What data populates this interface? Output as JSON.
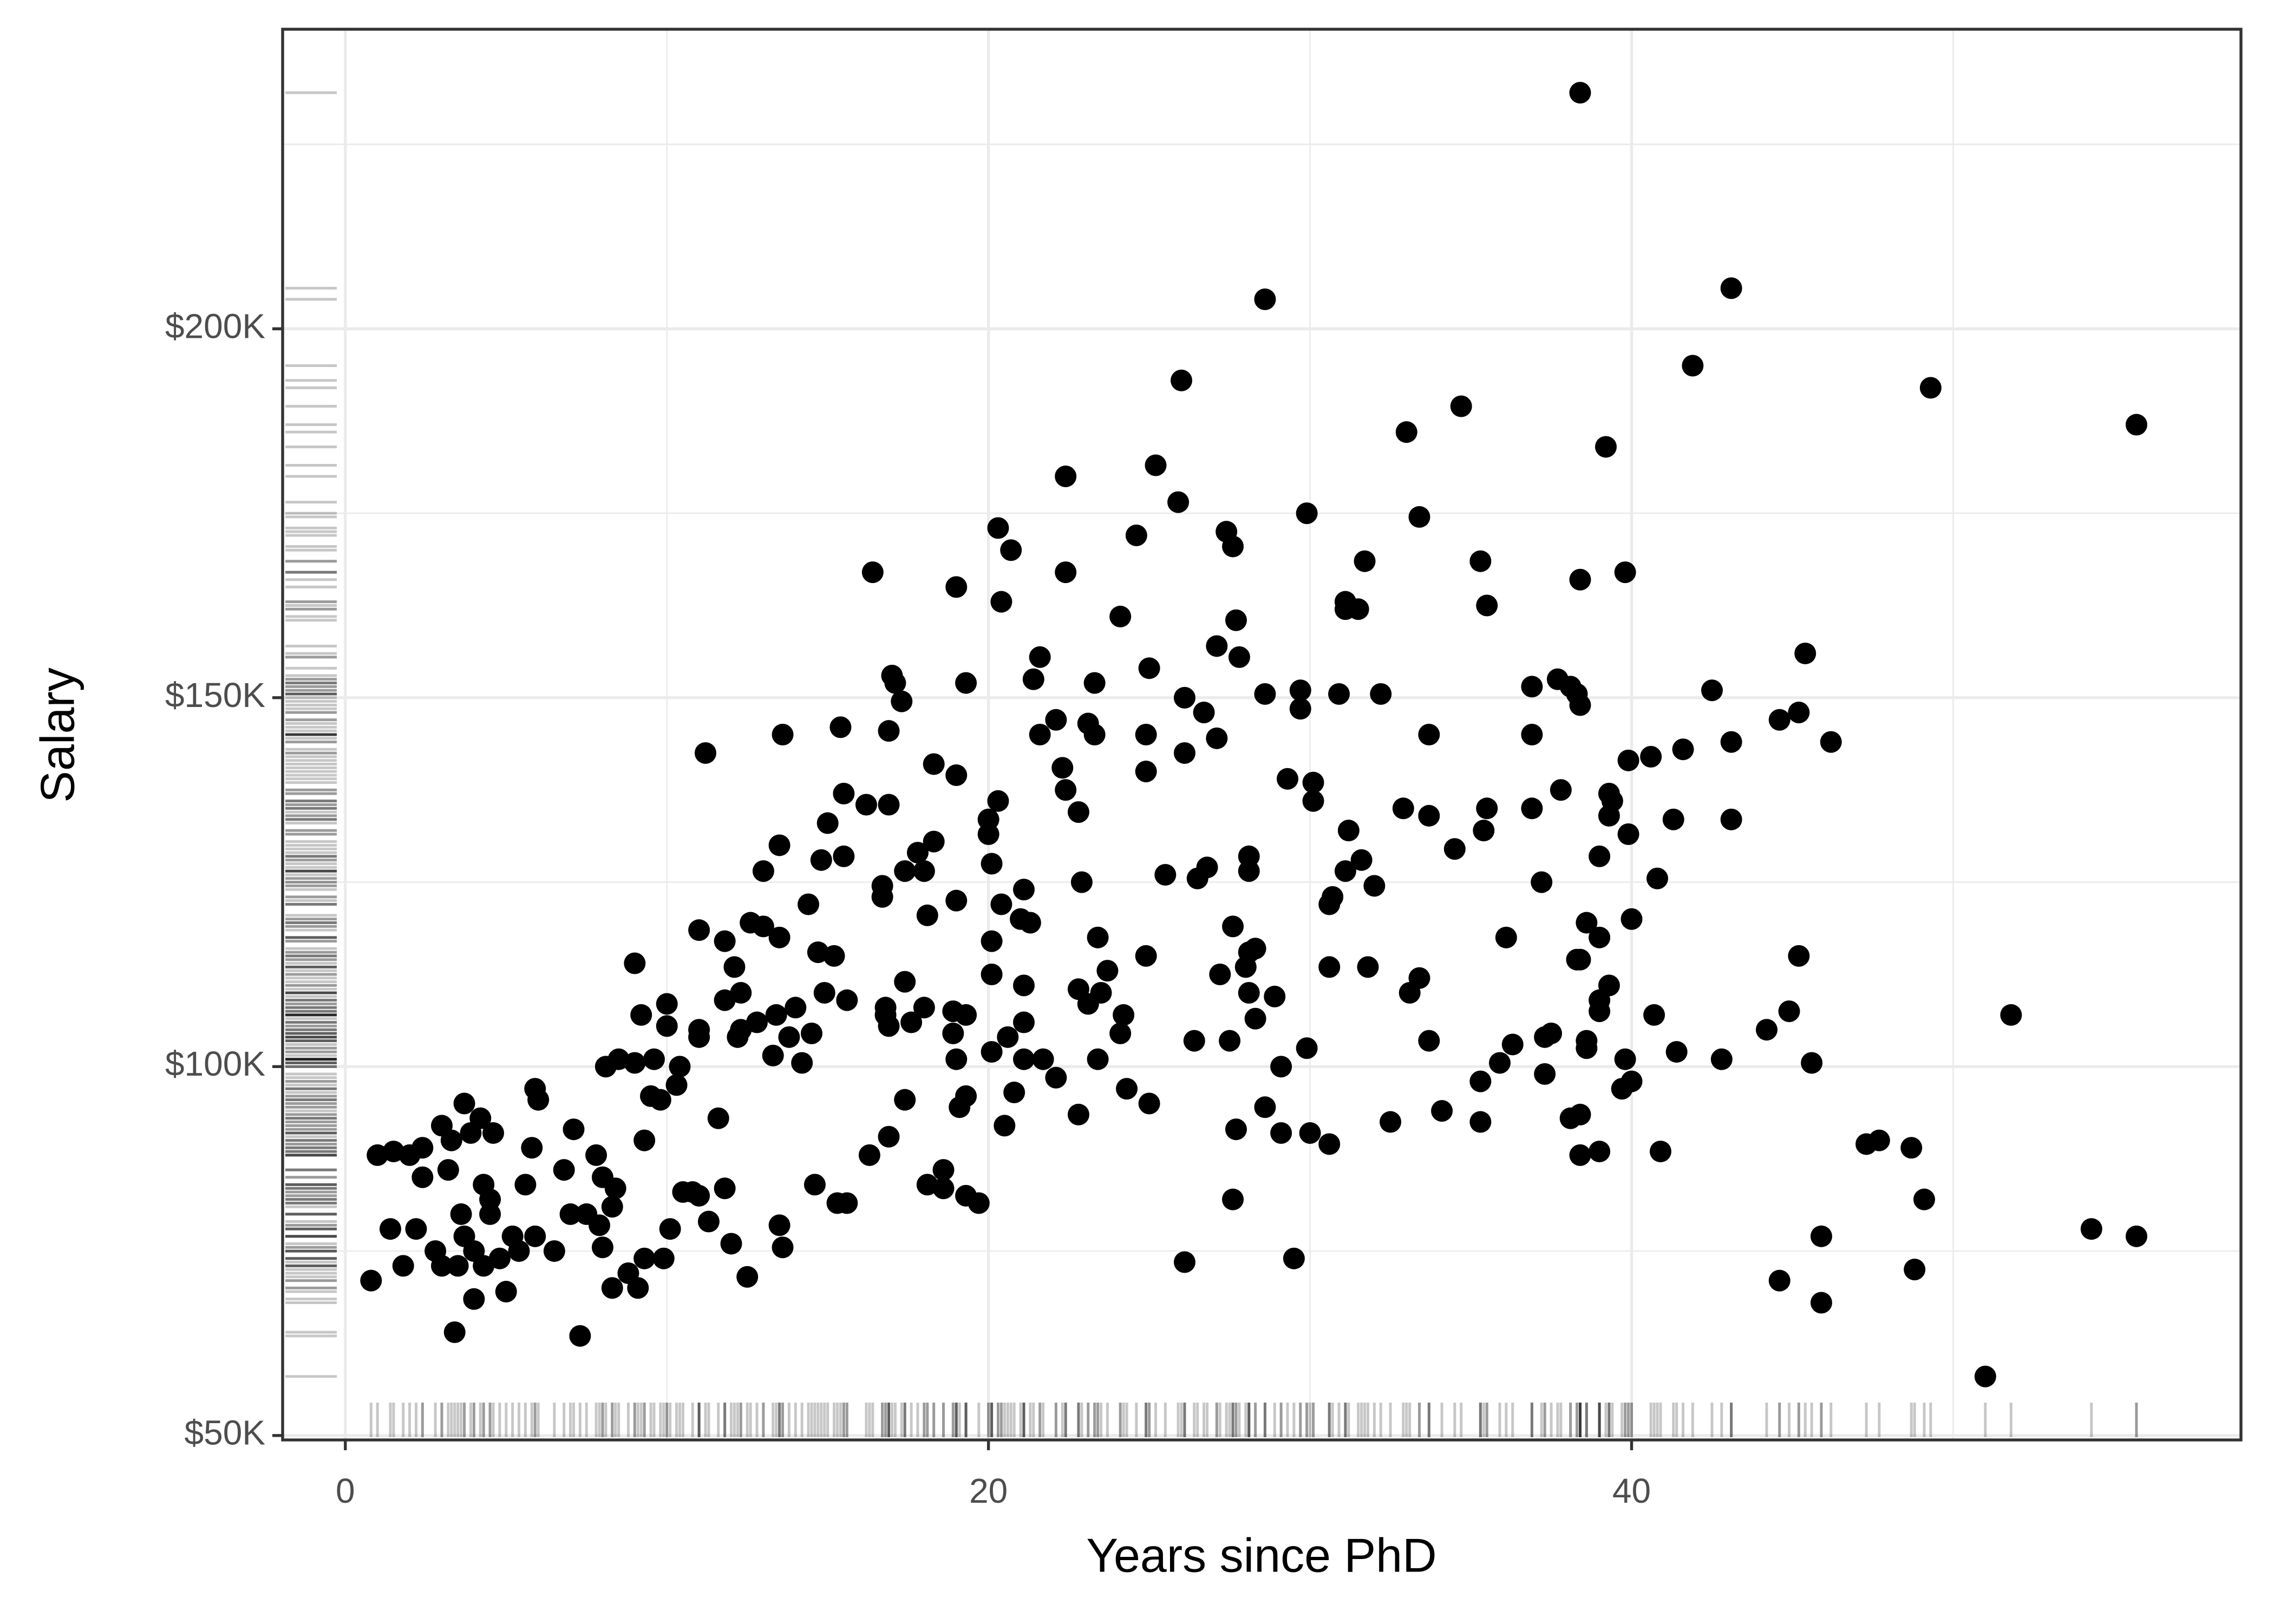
{
  "chart_data": {
    "type": "scatter",
    "x_label": "Years since PhD",
    "y_label": "Salary",
    "color": "#000000",
    "rug": true,
    "grid": true,
    "xlim": [
      -1.95,
      58.95
    ],
    "xticks": [
      0,
      20,
      40
    ],
    "ylim": [
      49400,
      240600
    ],
    "yticks": [
      {
        "value": 50000,
        "label": "$50K"
      },
      {
        "value": 100000,
        "label": "$100K"
      },
      {
        "value": 150000,
        "label": "$150K"
      },
      {
        "value": 200000,
        "label": "$200K"
      }
    ],
    "x": [
      0.8,
      1,
      1.5,
      1.4,
      2,
      1.8,
      2.2,
      2.4,
      2.4,
      2.8,
      3,
      3,
      3.2,
      3.3,
      3.4,
      3.5,
      3.6,
      3.7,
      3.7,
      3.9,
      4,
      4,
      4.2,
      4.3,
      4.3,
      4.5,
      4.5,
      4.6,
      4.8,
      5,
      5.2,
      5.4,
      5.6,
      5.8,
      5.9,
      5.9,
      6,
      6.5,
      6.8,
      7,
      7.1,
      7.3,
      7.5,
      7.8,
      7.9,
      8,
      8,
      8.1,
      8.3,
      8.3,
      8.4,
      8.5,
      8.8,
      9,
      9,
      9.1,
      9.2,
      9.3,
      9.3,
      9.5,
      9.6,
      9.8,
      9.9,
      10,
      10,
      10.1,
      10.3,
      10.4,
      10.5,
      10.8,
      11,
      11,
      11,
      11,
      11.2,
      11.3,
      11.6,
      11.8,
      11.8,
      11.8,
      12,
      12.1,
      12.2,
      12.3,
      12.3,
      12.5,
      12.6,
      12.8,
      13,
      13,
      13.3,
      13.4,
      13.5,
      13.5,
      13.5,
      13.6,
      13.6,
      13.8,
      14,
      14.2,
      14.5,
      14.4,
      14.6,
      14.7,
      14.8,
      14.9,
      15,
      15.2,
      15.3,
      15.4,
      15.5,
      15.5,
      15.6,
      15.6,
      16.2,
      16.3,
      16.8,
      16.8,
      16.9,
      17,
      16.4,
      16.7,
      16.7,
      16.9,
      16.9,
      16.9,
      17.1,
      17.3,
      17.4,
      17.4,
      17.4,
      17.6,
      17.8,
      18,
      18,
      18.1,
      18.1,
      18.3,
      18.3,
      18.6,
      18.6,
      18.9,
      18.9,
      19,
      19,
      19,
      19,
      19.1,
      19.3,
      19.3,
      19.3,
      19.3,
      19.7,
      20,
      20,
      20.1,
      20.1,
      20.1,
      20.1,
      20.3,
      20.3,
      20.4,
      20.4,
      20.5,
      20.6,
      20.7,
      20.8,
      21,
      21.1,
      21.1,
      21.1,
      21.1,
      21.3,
      21.4,
      21.6,
      21.6,
      21.7,
      22.1,
      22.1,
      22.3,
      22.4,
      22.4,
      22.4,
      22.8,
      22.8,
      22.8,
      22.9,
      23.1,
      23.1,
      23.3,
      23.3,
      23.4,
      23.4,
      23.5,
      23.7,
      24.1,
      24.1,
      24.2,
      24.3,
      24.6,
      24.9,
      24.9,
      24.9,
      25,
      25,
      25.2,
      25.5,
      25.9,
      26,
      26.1,
      26.1,
      26.1,
      26.4,
      26.5,
      26.7,
      26.8,
      27.1,
      27.1,
      27.2,
      27.4,
      27.5,
      27.6,
      27.6,
      27.6,
      27.7,
      27.7,
      27.8,
      28,
      28.1,
      28.1,
      28.1,
      28.1,
      28.3,
      28.3,
      28.6,
      28.6,
      28.6,
      28.9,
      29.1,
      29.1,
      29.3,
      29.5,
      29.7,
      29.7,
      29.9,
      29.9,
      30,
      30.1,
      30.1,
      30.6,
      30.6,
      30.7,
      30.6,
      30.9,
      31.1,
      31.1,
      31.1,
      31.2,
      31.5,
      31.6,
      31.7,
      31.8,
      32,
      32.2,
      32.5,
      32.9,
      33,
      33.1,
      33.4,
      33.4,
      33.7,
      33.7,
      33.7,
      34.1,
      34.5,
      34.7,
      35.3,
      35.3,
      35.3,
      35.4,
      35.5,
      35.5,
      35.9,
      36.1,
      36.3,
      36.9,
      36.9,
      36.9,
      37.2,
      37.3,
      37.3,
      37.5,
      37.7,
      37.8,
      38.1,
      38.1,
      38.4,
      38.4,
      38.4,
      38.4,
      38.3,
      38.3,
      38.4,
      38.6,
      38.6,
      38.6,
      38.4,
      39,
      39,
      39,
      39,
      39,
      39.2,
      39.3,
      39.3,
      39.3,
      39.4,
      39.7,
      39.8,
      39.8,
      39.9,
      39.9,
      40,
      40,
      40.6,
      40.7,
      40.8,
      40.9,
      41.3,
      41.4,
      41.6,
      41.9,
      42.5,
      42.8,
      43.1,
      43.1,
      43.1,
      44.2,
      44.6,
      44.6,
      44.9,
      45.2,
      45.2,
      45.4,
      45.6,
      45.9,
      45.9,
      46.2,
      47.3,
      47.7,
      48.7,
      48.8,
      49.1,
      49.3,
      51,
      51.8,
      54.3,
      55.7,
      55.7
    ],
    "values": [
      71000,
      88000,
      88500,
      78000,
      88000,
      73000,
      78000,
      85000,
      89000,
      75000,
      73000,
      92000,
      86000,
      90000,
      64000,
      73000,
      80000,
      95000,
      77000,
      91000,
      75000,
      68500,
      93000,
      84000,
      73000,
      82000,
      80000,
      91000,
      74000,
      69500,
      77000,
      75000,
      84000,
      89000,
      77000,
      97000,
      95500,
      75000,
      86000,
      80000,
      91500,
      63500,
      80000,
      88000,
      78500,
      85000,
      75500,
      100000,
      70000,
      81000,
      83500,
      101000,
      72000,
      114000,
      100500,
      70000,
      107000,
      90000,
      74000,
      96000,
      101000,
      95500,
      74000,
      105500,
      108500,
      78000,
      97500,
      100000,
      83000,
      83000,
      118500,
      82500,
      105000,
      104000,
      142500,
      79000,
      93000,
      117000,
      109000,
      83500,
      76000,
      113500,
      104000,
      110000,
      105000,
      71500,
      119500,
      106000,
      119000,
      126500,
      101500,
      107000,
      130000,
      117500,
      78500,
      75500,
      145000,
      104000,
      108000,
      100500,
      104500,
      122000,
      84000,
      115500,
      128000,
      110000,
      133000,
      115000,
      81500,
      146000,
      128500,
      137000,
      81500,
      109000,
      135500,
      88000,
      108000,
      107000,
      145500,
      153000,
      167000,
      123000,
      124500,
      135500,
      90500,
      105500,
      152000,
      149500,
      111500,
      95500,
      126500,
      106000,
      129000,
      108000,
      126500,
      120500,
      84000,
      141000,
      130500,
      86000,
      83500,
      107500,
      104500,
      165000,
      139500,
      122500,
      101000,
      94500,
      82500,
      96000,
      152000,
      107000,
      81500,
      133500,
      131500,
      117000,
      112500,
      127500,
      102000,
      136000,
      173000,
      122000,
      163000,
      92000,
      104000,
      170000,
      96500,
      120000,
      124000,
      111000,
      106000,
      101000,
      119500,
      152500,
      155500,
      145000,
      101000,
      147000,
      98500,
      140500,
      180000,
      167000,
      137500,
      110500,
      93500,
      134500,
      125000,
      108500,
      146500,
      145000,
      152000,
      101000,
      117500,
      110000,
      113000,
      161000,
      104500,
      107000,
      97000,
      172000,
      145000,
      140000,
      115000,
      154000,
      95000,
      181500,
      126000,
      176500,
      193000,
      150000,
      142500,
      73500,
      103500,
      125500,
      148000,
      127000,
      144500,
      157000,
      112500,
      172500,
      103500,
      170500,
      119000,
      82000,
      160500,
      91500,
      155500,
      113500,
      126500,
      110000,
      115500,
      128500,
      116000,
      106500,
      204000,
      150500,
      94500,
      109500,
      100000,
      91000,
      139000,
      74000,
      148500,
      151000,
      175000,
      102500,
      91000,
      136000,
      138500,
      122000,
      113500,
      123000,
      89500,
      150500,
      163000,
      162000,
      126500,
      132000,
      162000,
      128000,
      168500,
      113500,
      124500,
      150500,
      92500,
      135000,
      186000,
      110000,
      112000,
      174500,
      145000,
      134000,
      103500,
      94000,
      129500,
      189500,
      168500,
      98000,
      92500,
      132000,
      135000,
      162500,
      100500,
      117500,
      103000,
      151500,
      145000,
      135000,
      125000,
      104000,
      99000,
      104500,
      152500,
      137500,
      151500,
      93000,
      166000,
      114500,
      93500,
      149000,
      150500,
      114500,
      88000,
      103500,
      119500,
      102500,
      232000,
      117500,
      109000,
      107500,
      128500,
      88500,
      184000,
      111000,
      137000,
      134000,
      136000,
      97000,
      101000,
      167000,
      131500,
      141500,
      98000,
      120000,
      142000,
      107000,
      125500,
      88500,
      133500,
      102000,
      143000,
      195000,
      151000,
      101000,
      205500,
      144000,
      133500,
      105000,
      71000,
      147000,
      107500,
      148000,
      115000,
      156000,
      100500,
      77000,
      68000,
      144000,
      89500,
      90000,
      89000,
      72500,
      82000,
      192000,
      58000,
      107000,
      78000,
      187000,
      77000
    ]
  }
}
